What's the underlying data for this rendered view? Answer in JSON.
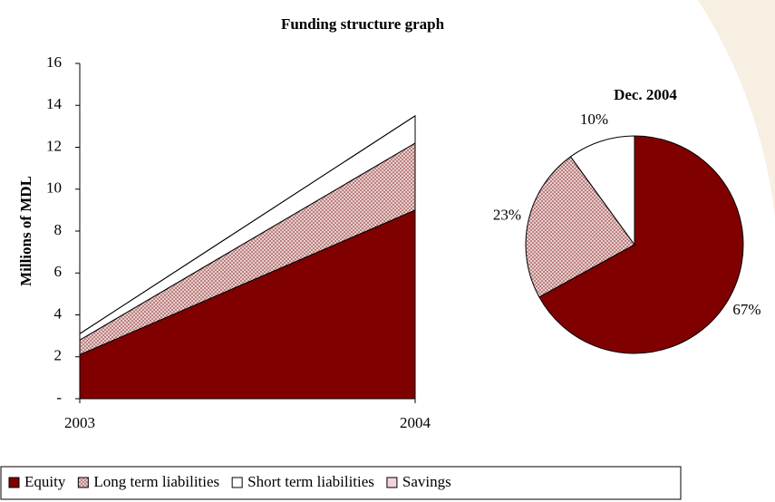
{
  "chart_data": [
    {
      "type": "area",
      "title": "Funding structure graph",
      "y_label": "Millions of MDL",
      "categories": [
        "2003",
        "2004"
      ],
      "series": [
        {
          "name": "Equity",
          "color": "#800000",
          "values": [
            2.1,
            9.0
          ]
        },
        {
          "name": "Long term liabilities",
          "color": "#e6c3c3",
          "hatch": true,
          "values": [
            0.7,
            3.2
          ]
        },
        {
          "name": "Short term liabilities",
          "color": "#ffffff",
          "values": [
            0.3,
            1.3
          ]
        },
        {
          "name": "Savings",
          "color": "#f4d4dc",
          "values": [
            0,
            0
          ]
        }
      ],
      "ylim": [
        0,
        16
      ],
      "yticks": [
        {
          "value": 0,
          "label": "-"
        },
        2,
        4,
        6,
        8,
        10,
        12,
        14,
        16
      ]
    },
    {
      "type": "pie",
      "title": "Dec. 2004",
      "values": [
        67,
        23,
        10
      ],
      "value_labels": [
        "67%",
        "23%",
        "10%"
      ],
      "colors": [
        "#800000",
        "#e6c3c3",
        "#ffffff"
      ],
      "hatch": [
        false,
        true,
        false
      ]
    }
  ]
}
